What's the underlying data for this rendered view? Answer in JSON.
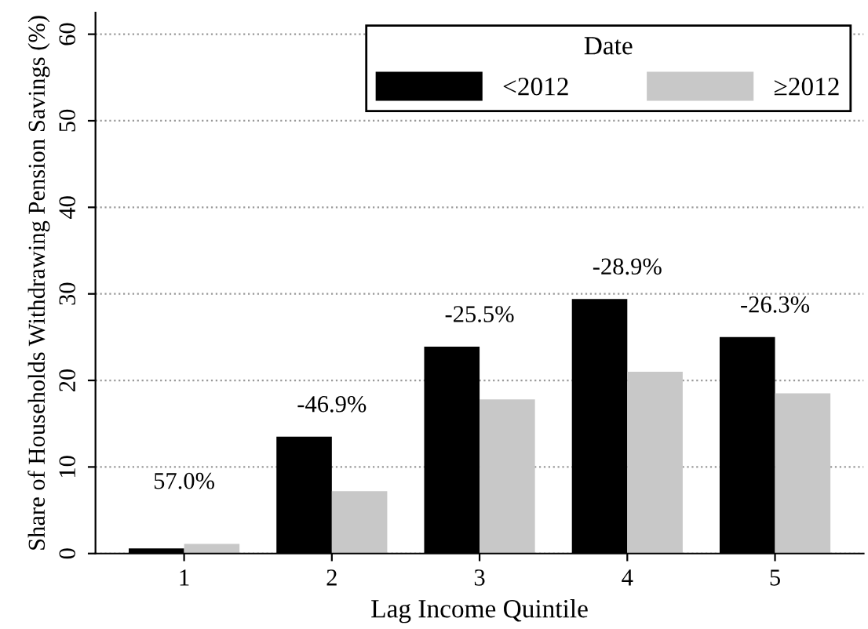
{
  "chart_data": {
    "type": "bar",
    "xlabel": "Lag Income Quintile",
    "ylabel": "Share of Households Withdrawing Pension Savings (%)",
    "legend_title": "Date",
    "categories": [
      "1",
      "2",
      "3",
      "4",
      "5"
    ],
    "series": [
      {
        "name": "<2012",
        "color": "#000000",
        "values": [
          0.6,
          13.5,
          23.9,
          29.4,
          25.0
        ]
      },
      {
        "name": "≥2012",
        "color": "#c8c8c8",
        "values": [
          1.1,
          7.2,
          17.8,
          21.0,
          18.5
        ]
      }
    ],
    "annotations": [
      "57.0%",
      "-46.9%",
      "-25.5%",
      "-28.9%",
      "-26.3%"
    ],
    "ylim": [
      0,
      62.5
    ],
    "yticks": [
      0,
      10,
      20,
      30,
      40,
      50,
      60
    ],
    "grid": "y",
    "legend": "top right"
  }
}
